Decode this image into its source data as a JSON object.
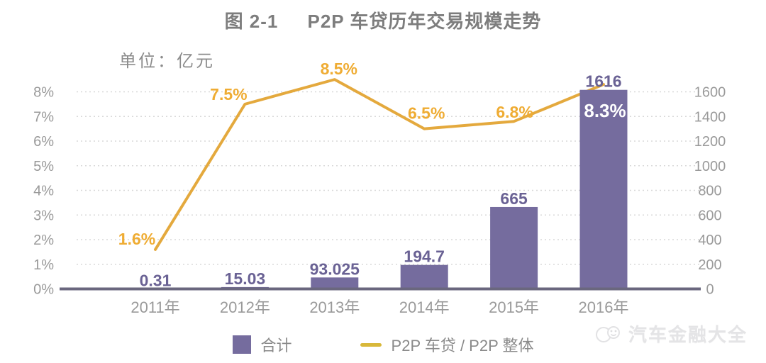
{
  "chart_data": {
    "type": "bar+line",
    "title": "图 2-1     P2P 车贷历年交易规模走势",
    "unit_label": "单位：亿元",
    "categories": [
      "2011年",
      "2012年",
      "2013年",
      "2014年",
      "2015年",
      "2016年"
    ],
    "series": [
      {
        "name": "合计",
        "type": "bar",
        "axis": "right",
        "values": [
          0.31,
          15.03,
          93.025,
          194.7,
          665,
          1616
        ],
        "labels": [
          "0.31",
          "15.03",
          "93.025",
          "194.7",
          "665",
          "1616"
        ]
      },
      {
        "name": "P2P 车贷 / P2P 整体",
        "type": "line",
        "axis": "left",
        "values_pct": [
          1.6,
          7.5,
          8.5,
          6.5,
          6.8,
          8.3
        ],
        "labels": [
          "1.6%",
          "7.5%",
          "8.5%",
          "6.5%",
          "6.8%",
          "8.3%"
        ]
      }
    ],
    "left_axis": {
      "unit": "%",
      "min": 0,
      "max": 8,
      "ticks": [
        "0%",
        "1%",
        "2%",
        "3%",
        "4%",
        "5%",
        "6%",
        "7%",
        "8%"
      ]
    },
    "right_axis": {
      "min": 0,
      "max": 1600,
      "step": 200,
      "ticks": [
        "0",
        "200",
        "400",
        "600",
        "800",
        "1000",
        "1200",
        "1400",
        "1600"
      ]
    },
    "grid": "horizontal dotted",
    "legend_position": "bottom"
  },
  "legend": {
    "bar_label": "合计",
    "line_label": "P2P 车贷 / P2P 整体"
  },
  "watermark": {
    "text": "汽车金融大全"
  },
  "colors": {
    "bar": "#756c9e",
    "bar_label": "#6a6294",
    "line": "#e4a93d",
    "line_label": "#efac33",
    "inside_label": "#ffffff",
    "legend_dash": "#d8b83a",
    "axis_text": "#9a9a9a",
    "grid": "#d8d8d8",
    "baseline": "#6a677e",
    "title_text": "#7d7d7d"
  }
}
